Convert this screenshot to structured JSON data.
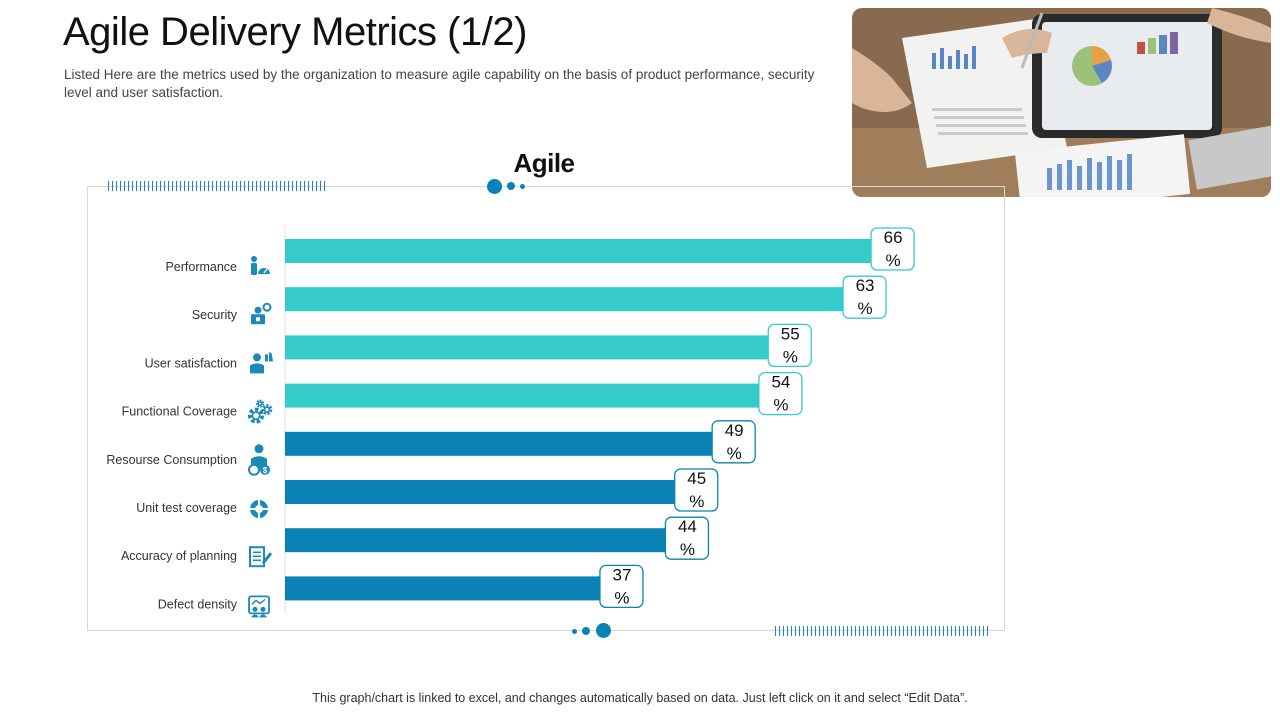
{
  "page": {
    "title": "Agile Delivery Metrics (1/2)",
    "subtitle": "Listed Here are the metrics used by the organization to measure agile capability on the basis of product performance, security level and user satisfaction.",
    "footer": "This graph/chart is linked to excel, and changes automatically based on data. Just left click on it and select “Edit Data”."
  },
  "colors": {
    "teal": "#36cbcb",
    "blue": "#0a82b5",
    "icon": "#1a8ab8"
  },
  "chart_data": {
    "type": "bar",
    "orientation": "horizontal",
    "title": "Agile",
    "categories": [
      "Performance",
      "Security",
      "User satisfaction",
      "Functional Coverage",
      "Resourse Consumption",
      "Unit test coverage",
      "Accuracy of planning",
      "Defect density"
    ],
    "values": [
      66,
      63,
      55,
      54,
      49,
      45,
      44,
      37
    ],
    "value_suffix": "%",
    "bar_colors": [
      "#36cbcb",
      "#36cbcb",
      "#36cbcb",
      "#36cbcb",
      "#0a82b5",
      "#0a82b5",
      "#0a82b5",
      "#0a82b5"
    ],
    "icons": [
      "performance-icon",
      "security-icon",
      "user-satisfaction-icon",
      "functional-coverage-icon",
      "resource-consumption-icon",
      "unit-test-coverage-icon",
      "accuracy-of-planning-icon",
      "defect-density-icon"
    ],
    "xlim": [
      0,
      70
    ],
    "grid": false,
    "legend": "none"
  }
}
